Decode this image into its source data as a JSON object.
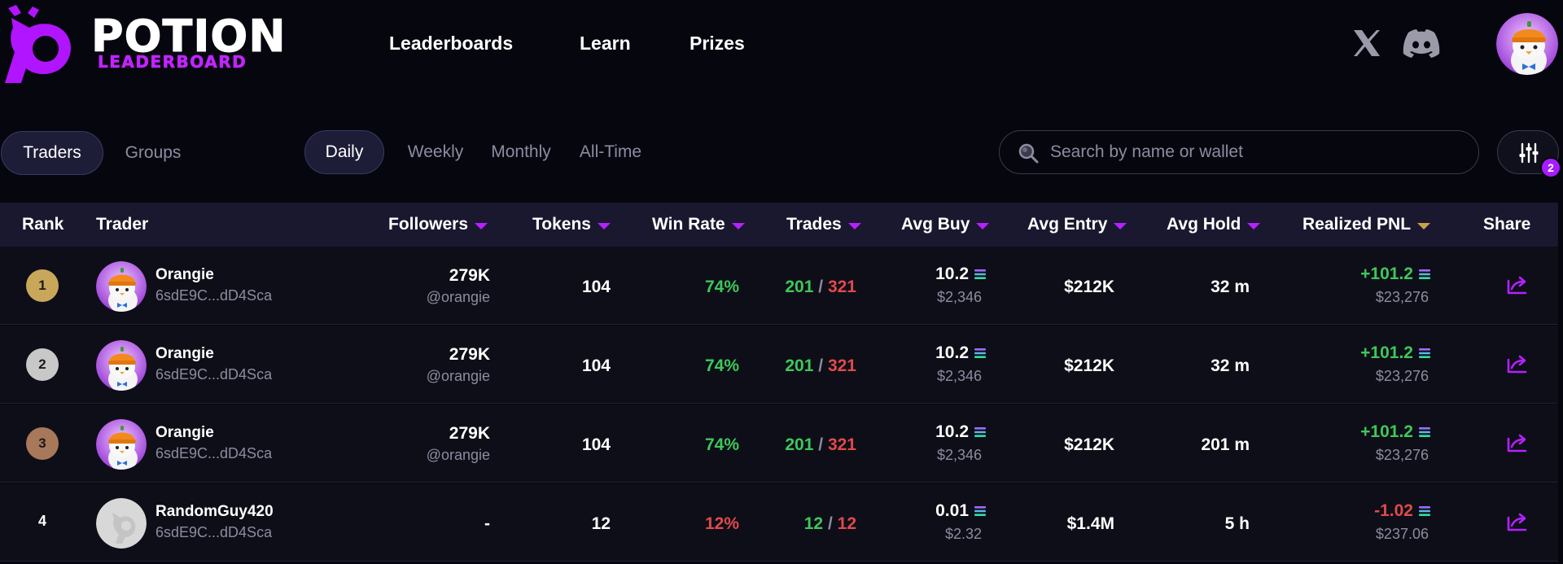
{
  "brand": {
    "line1": "POTION",
    "line2": "LEADERBOARD"
  },
  "nav": [
    {
      "label": "Leaderboards"
    },
    {
      "label": "Learn"
    },
    {
      "label": "Prizes"
    }
  ],
  "social": {
    "x_icon": "x-logo-icon",
    "discord_icon": "discord-logo-icon"
  },
  "toggle_type": [
    {
      "label": "Traders",
      "active": true
    },
    {
      "label": "Groups",
      "active": false
    }
  ],
  "periods": [
    {
      "label": "Daily",
      "active": true
    },
    {
      "label": "Weekly",
      "active": false
    },
    {
      "label": "Monthly",
      "active": false
    },
    {
      "label": "All-Time",
      "active": false
    }
  ],
  "search": {
    "placeholder": "Search by name or wallet",
    "value": ""
  },
  "filters": {
    "badge_count": "2"
  },
  "table": {
    "headers": {
      "rank": "Rank",
      "trader": "Trader",
      "followers": "Followers",
      "tokens": "Tokens",
      "win_rate": "Win Rate",
      "trades": "Trades",
      "avg_buy": "Avg Buy",
      "avg_entry": "Avg Entry",
      "avg_hold": "Avg Hold",
      "realized_pnl": "Realized PNL",
      "share": "Share"
    },
    "rows": [
      {
        "rank": "1",
        "name": "Orangie",
        "wallet": "6sdE9C...dD4Sca",
        "followers": "279K",
        "handle": "@orangie",
        "tokens": "104",
        "win_rate": "74%",
        "trades_win": "201",
        "trades_sep": "/",
        "trades_loss": "321",
        "avg_buy": "10.2",
        "avg_buy_usd": "$2,346",
        "avg_entry": "$212K",
        "avg_hold": "32 m",
        "pnl": "+101.2",
        "pnl_usd": "$23,276"
      },
      {
        "rank": "2",
        "name": "Orangie",
        "wallet": "6sdE9C...dD4Sca",
        "followers": "279K",
        "handle": "@orangie",
        "tokens": "104",
        "win_rate": "74%",
        "trades_win": "201",
        "trades_sep": "/",
        "trades_loss": "321",
        "avg_buy": "10.2",
        "avg_buy_usd": "$2,346",
        "avg_entry": "$212K",
        "avg_hold": "32 m",
        "pnl": "+101.2",
        "pnl_usd": "$23,276"
      },
      {
        "rank": "3",
        "name": "Orangie",
        "wallet": "6sdE9C...dD4Sca",
        "followers": "279K",
        "handle": "@orangie",
        "tokens": "104",
        "win_rate": "74%",
        "trades_win": "201",
        "trades_sep": "/",
        "trades_loss": "321",
        "avg_buy": "10.2",
        "avg_buy_usd": "$2,346",
        "avg_entry": "$212K",
        "avg_hold": "201 m",
        "pnl": "+101.2",
        "pnl_usd": "$23,276"
      },
      {
        "rank": "4",
        "name": "RandomGuy420",
        "wallet": "6sdE9C...dD4Sca",
        "followers": "-",
        "handle": "",
        "tokens": "12",
        "win_rate": "12%",
        "trades_win": "12",
        "trades_sep": "/",
        "trades_loss": "12",
        "avg_buy": "0.01",
        "avg_buy_usd": "$2.32",
        "avg_entry": "$1.4M",
        "avg_hold": "5 h",
        "pnl": "-1.02",
        "pnl_usd": "$237.06"
      }
    ]
  },
  "colors": {
    "background": "#06060f",
    "accent": "#b521ff",
    "positive": "#3ec85a",
    "negative": "#e04a4a",
    "rank_gold": "#c9a75a",
    "rank_silver": "#c8c8c8",
    "rank_bronze": "#a8785a"
  }
}
